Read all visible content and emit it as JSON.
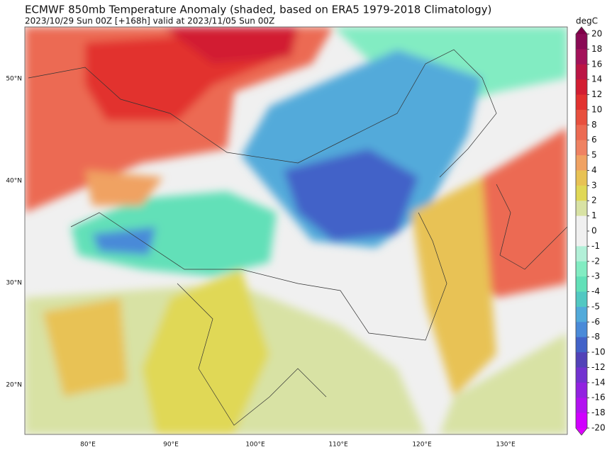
{
  "header": {
    "title": "ECMWF 850mb Temperature Anomaly (shaded, based on ERA5 1979-2018 Climatology)",
    "subtitle": "2023/10/29 Sun 00Z [+168h] valid at 2023/11/05 Sun 00Z"
  },
  "map": {
    "lat_labels": [
      "50°N",
      "40°N",
      "30°N",
      "20°N"
    ],
    "lon_labels": [
      "80°E",
      "90°E",
      "100°E",
      "110°E",
      "120°E",
      "130°E"
    ]
  },
  "colorbar": {
    "unit": "degC",
    "ticks": [
      20,
      18,
      16,
      14,
      12,
      10,
      8,
      6,
      5,
      4,
      3,
      2,
      1,
      0,
      -1,
      -2,
      -3,
      -4,
      -5,
      -6,
      -8,
      -10,
      -12,
      -14,
      -16,
      -18,
      -20
    ],
    "colors": [
      "#8a0a55",
      "#a3125a",
      "#bb1545",
      "#d21e32",
      "#e2322f",
      "#e8503e",
      "#ec6a52",
      "#ef8262",
      "#f0a262",
      "#e8c254",
      "#e0d856",
      "#d8e2a4",
      "#f0f0f0",
      "#f0f0f0",
      "#b2f0d8",
      "#82ecc2",
      "#62e0b8",
      "#52c8c2",
      "#52aada",
      "#4a8ad8",
      "#4262c8",
      "#5242b8",
      "#7232d0",
      "#9222e0",
      "#b212f0",
      "#d000ff"
    ],
    "over_color": "#7e0048",
    "under_color": "#dc00ff"
  }
}
